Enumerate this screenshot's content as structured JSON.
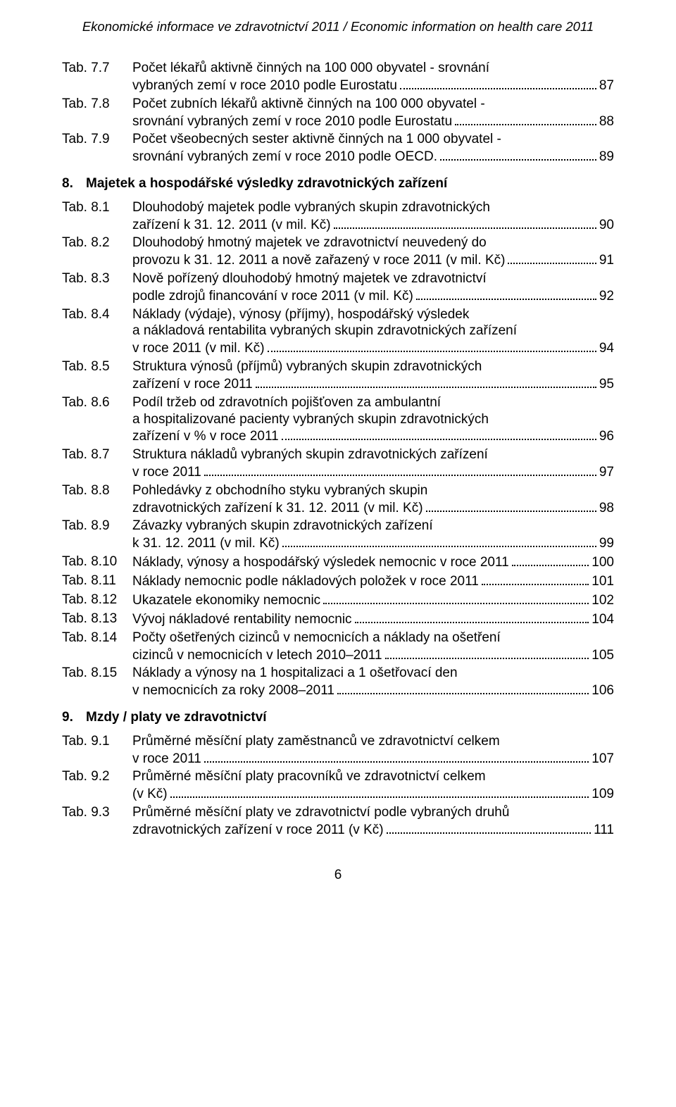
{
  "header": {
    "title_cs": "Ekonomické informace ve zdravotnictví 2011",
    "separator": " / ",
    "title_en": "Economic information on health care 2011"
  },
  "toc": [
    {
      "label": "Tab. 7.7",
      "lines": [
        "Počet lékařů aktivně činných na 100 000 obyvatel - srovnání",
        "vybraných zemí v roce 2010 podle Eurostatu"
      ],
      "page": "87"
    },
    {
      "label": "Tab. 7.8",
      "lines": [
        "Počet zubních lékařů aktivně činných na 100 000 obyvatel -",
        "srovnání vybraných zemí v roce 2010 podle Eurostatu"
      ],
      "page": "88"
    },
    {
      "label": "Tab. 7.9",
      "lines": [
        "Počet všeobecných sester aktivně činných na 1 000 obyvatel -",
        "srovnání vybraných zemí v roce 2010 podle OECD. "
      ],
      "page": "89"
    }
  ],
  "section8": {
    "num": "8.",
    "title": "Majetek a hospodářské výsledky zdravotnických zařízení"
  },
  "toc8": [
    {
      "label": "Tab. 8.1",
      "lines": [
        "Dlouhodobý majetek podle vybraných skupin zdravotnických",
        "zařízení k 31. 12. 2011 (v mil. Kč)"
      ],
      "page": "90"
    },
    {
      "label": "Tab. 8.2",
      "lines": [
        "Dlouhodobý hmotný majetek ve zdravotnictví neuvedený do",
        "provozu k 31. 12. 2011 a nově zařazený v roce 2011 (v mil. Kč)"
      ],
      "page": "91"
    },
    {
      "label": "Tab. 8.3",
      "lines": [
        "Nově pořízený dlouhodobý hmotný majetek ve zdravotnictví",
        "podle zdrojů financování v roce 2011 (v mil. Kč)"
      ],
      "page": "92"
    },
    {
      "label": "Tab. 8.4",
      "lines": [
        "Náklady (výdaje), výnosy (příjmy), hospodářský výsledek",
        "a nákladová rentabilita vybraných skupin zdravotnických zařízení",
        "v roce 2011 (v mil. Kč)"
      ],
      "page": "94"
    },
    {
      "label": "Tab. 8.5",
      "lines": [
        "Struktura výnosů (příjmů) vybraných skupin zdravotnických",
        "zařízení v roce 2011"
      ],
      "page": "95"
    },
    {
      "label": "Tab. 8.6",
      "lines": [
        "Podíl tržeb od zdravotních pojišťoven za ambulantní",
        "a hospitalizované pacienty vybraných skupin zdravotnických",
        "zařízení v % v roce 2011"
      ],
      "page": "96"
    },
    {
      "label": "Tab. 8.7",
      "lines": [
        "Struktura nákladů vybraných skupin zdravotnických zařízení",
        "v roce 2011"
      ],
      "page": "97"
    },
    {
      "label": "Tab. 8.8",
      "lines": [
        "Pohledávky z obchodního styku vybraných skupin",
        "zdravotnických zařízení k 31. 12. 2011 (v mil. Kč)"
      ],
      "page": "98"
    },
    {
      "label": "Tab. 8.9",
      "lines": [
        "Závazky vybraných skupin zdravotnických zařízení",
        "k 31. 12. 2011 (v mil. Kč)"
      ],
      "page": "99"
    },
    {
      "label": "Tab. 8.10",
      "lines": [
        "Náklady, výnosy a hospodářský výsledek nemocnic v roce 2011"
      ],
      "page": "100"
    },
    {
      "label": "Tab. 8.11",
      "lines": [
        "Náklady nemocnic podle nákladových položek v roce 2011"
      ],
      "page": "101"
    },
    {
      "label": "Tab. 8.12",
      "lines": [
        "Ukazatele ekonomiky nemocnic"
      ],
      "page": "102"
    },
    {
      "label": "Tab. 8.13",
      "lines": [
        "Vývoj nákladové rentability nemocnic"
      ],
      "page": "104"
    },
    {
      "label": "Tab. 8.14",
      "lines": [
        "Počty ošetřených cizinců v nemocnicích a náklady na ošetření",
        "cizinců v nemocnicích v letech 2010–2011"
      ],
      "page": "105"
    },
    {
      "label": "Tab. 8.15",
      "lines": [
        "Náklady a výnosy na 1 hospitalizaci a 1 ošetřovací den",
        "v nemocnicích za roky 2008–2011"
      ],
      "page": "106"
    }
  ],
  "section9": {
    "num": "9.",
    "title": "Mzdy / platy ve zdravotnictví"
  },
  "toc9": [
    {
      "label": "Tab. 9.1",
      "lines": [
        "Průměrné měsíční platy zaměstnanců ve zdravotnictví celkem",
        "v roce 2011"
      ],
      "page": "107"
    },
    {
      "label": "Tab. 9.2",
      "lines": [
        "Průměrné měsíční platy pracovníků ve zdravotnictví celkem",
        "(v Kč)"
      ],
      "page": "109"
    },
    {
      "label": "Tab. 9.3",
      "lines": [
        "Průměrné měsíční platy ve zdravotnictví podle vybraných druhů",
        "zdravotnických zařízení v roce 2011 (v Kč)"
      ],
      "page": "111"
    }
  ],
  "footer": {
    "page_number": "6"
  }
}
